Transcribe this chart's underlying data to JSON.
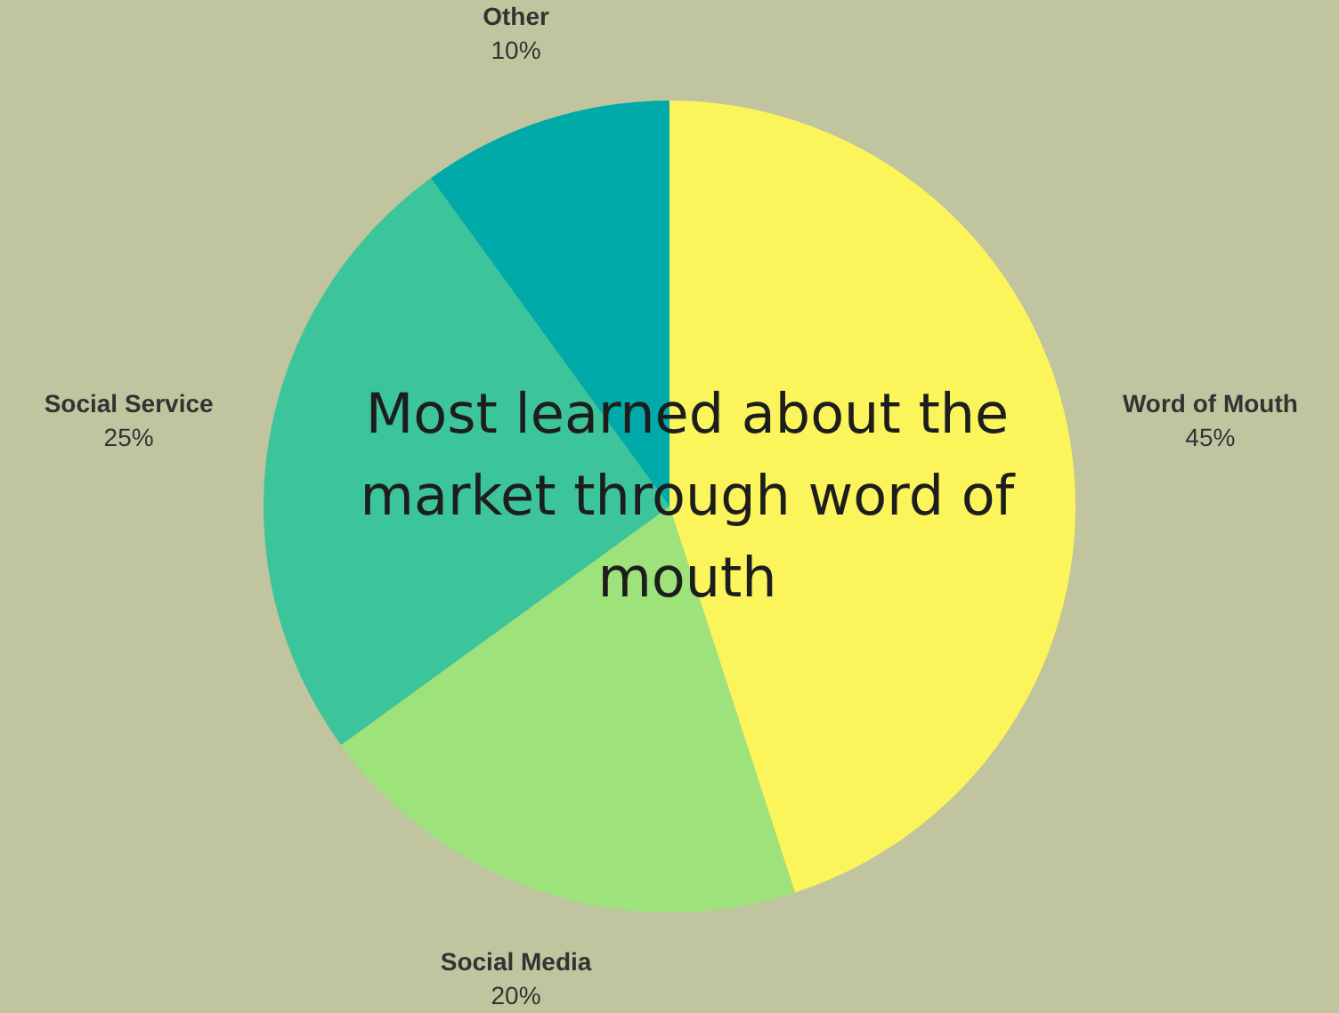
{
  "chart_data": {
    "type": "pie",
    "title": "Most learned about the market through word of mouth",
    "categories": [
      "Word of Mouth",
      "Social Media",
      "Social Service",
      "Other"
    ],
    "values": [
      45,
      20,
      25,
      10
    ],
    "value_labels": [
      "45%",
      "20%",
      "25%",
      "10%"
    ],
    "colors": [
      "#fbf55b",
      "#9de27a",
      "#3cc49a",
      "#00aaa8"
    ]
  }
}
